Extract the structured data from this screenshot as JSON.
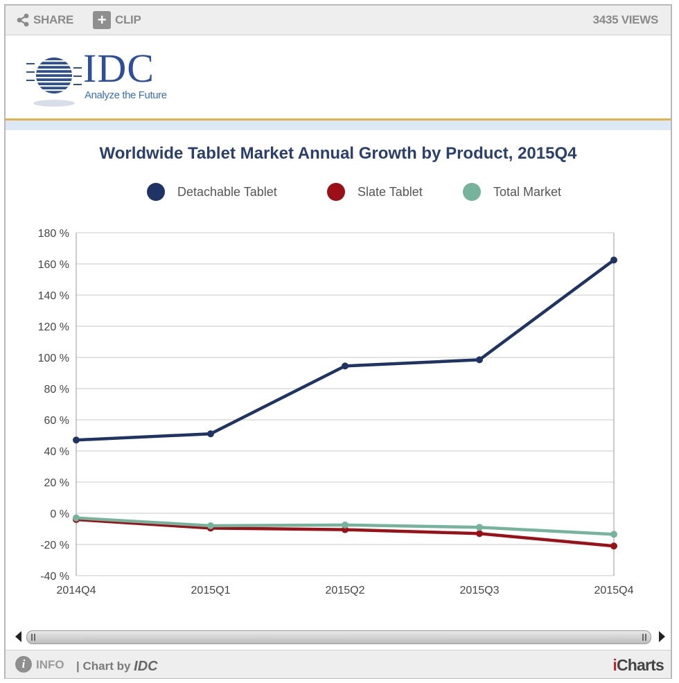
{
  "topbar": {
    "share_label": "SHARE",
    "clip_label": "CLIP",
    "views_label": "3435 VIEWS"
  },
  "logo": {
    "text": "IDC",
    "tagline": "Analyze the Future"
  },
  "footer": {
    "info_label": "INFO",
    "chart_by_prefix": "| Chart by ",
    "chart_by_brand": "IDC",
    "brand_i": "i",
    "brand_rest": "Charts"
  },
  "colors": {
    "detachable": "#1f3464",
    "slate": "#9b1016",
    "total": "#76b39c",
    "title": "#2a3f6e"
  },
  "chart_data": {
    "type": "line",
    "title": "Worldwide Tablet Market Annual Growth by Product, 2015Q4",
    "categories": [
      "2014Q4",
      "2015Q1",
      "2015Q2",
      "2015Q3",
      "2015Q4"
    ],
    "series": [
      {
        "name": "Detachable Tablet",
        "values": [
          47,
          51,
          94.5,
          98.5,
          162.5
        ]
      },
      {
        "name": "Slate Tablet",
        "values": [
          -4,
          -9.5,
          -10.5,
          -13,
          -21
        ]
      },
      {
        "name": "Total Market",
        "values": [
          -3,
          -8,
          -7.5,
          -9,
          -13.5
        ]
      }
    ],
    "ylim": [
      -40,
      180
    ],
    "yticks": [
      -40,
      -20,
      0,
      20,
      40,
      60,
      80,
      100,
      120,
      140,
      160,
      180
    ],
    "ytick_labels": [
      "-40 %",
      "-20 %",
      "0 %",
      "20 %",
      "40 %",
      "60 %",
      "80 %",
      "100 %",
      "120 %",
      "140 %",
      "160 %",
      "180 %"
    ],
    "grid": true,
    "legend_position": "top"
  }
}
